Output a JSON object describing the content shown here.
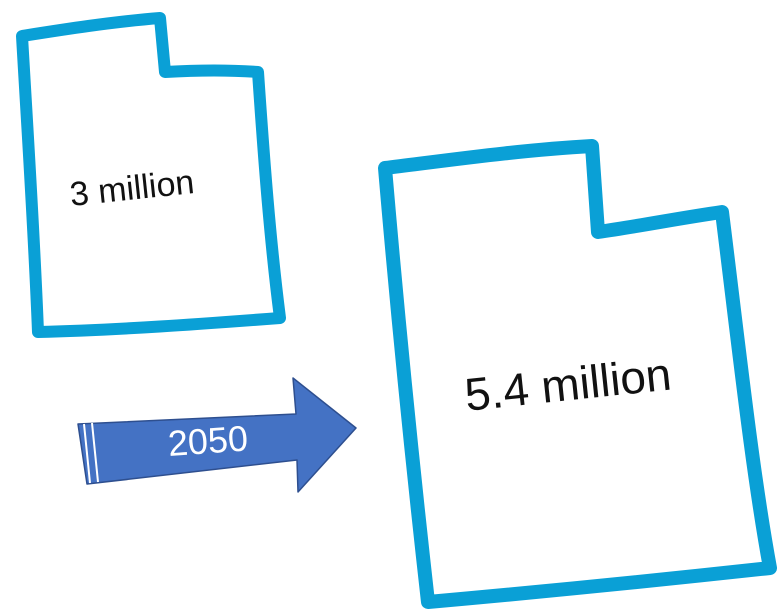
{
  "current_population": "3 million",
  "future_population": "5.4 million",
  "year": "2050",
  "colors": {
    "outline": "#0aa0d6",
    "arrow_fill": "#4472c4",
    "arrow_stroke": "#2e4f8f",
    "year_text": "#ffffff",
    "label_text": "#111111"
  }
}
